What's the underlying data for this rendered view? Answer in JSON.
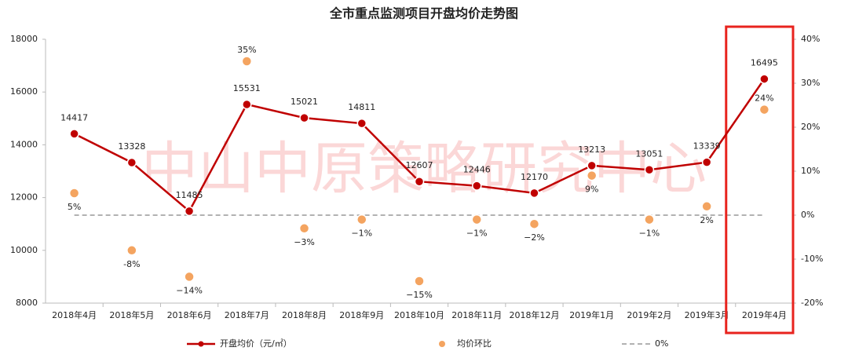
{
  "chart_data": {
    "type": "line",
    "title": "全市重点监测项目开盘均价走势图",
    "watermark": "中山中原策略研究中心",
    "categories": [
      "2018年4月",
      "2018年5月",
      "2018年6月",
      "2018年7月",
      "2018年8月",
      "2018年9月",
      "2018年10月",
      "2018年11月",
      "2018年12月",
      "2019年1月",
      "2019年2月",
      "2019年3月",
      "2019年4月"
    ],
    "series": [
      {
        "name": "开盘均价（元/㎡）",
        "color": "#c00000",
        "type": "line",
        "values": [
          14417,
          13328,
          11485,
          15531,
          15021,
          14811,
          12607,
          12446,
          12170,
          13213,
          13051,
          13339,
          16495
        ]
      },
      {
        "name": "均价环比",
        "color": "#f4a460",
        "type": "scatter",
        "axis": "y2",
        "values": [
          5,
          -8,
          -14,
          35,
          -3,
          -1,
          -15,
          -1,
          -2,
          9,
          -1,
          2,
          24
        ],
        "value_labels": [
          "5%",
          "-8%",
          "−14%",
          "35%",
          "−3%",
          "−1%",
          "−15%",
          "−1%",
          "−2%",
          "9%",
          "−1%",
          "2%",
          "24%"
        ]
      }
    ],
    "reference_line": {
      "name": "0%",
      "value": 0,
      "axis": "y2",
      "color": "#999999"
    },
    "ylim": [
      8000,
      18000
    ],
    "yticks": [
      8000,
      10000,
      12000,
      14000,
      16000,
      18000
    ],
    "y2lim": [
      -20,
      40
    ],
    "y2ticks": [
      {
        "value": -20,
        "label": "-20%"
      },
      {
        "value": -10,
        "label": "-10%"
      },
      {
        "value": 0,
        "label": "0%"
      },
      {
        "value": 10,
        "label": "10%"
      },
      {
        "value": 20,
        "label": "20%"
      },
      {
        "value": 30,
        "label": "30%"
      },
      {
        "value": 40,
        "label": "40%"
      }
    ]
  }
}
